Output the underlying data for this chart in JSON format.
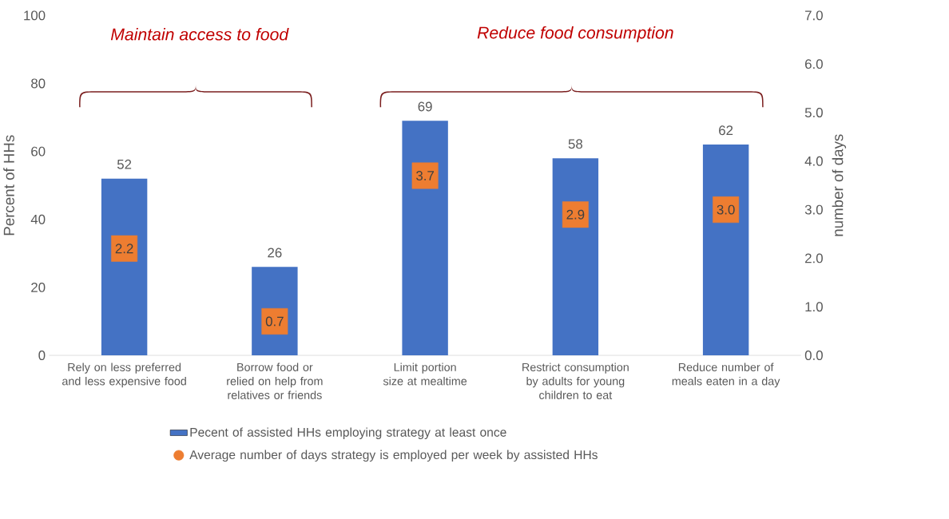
{
  "chart_data": {
    "type": "bar",
    "ylabel": "Percent of HHs",
    "y2label": "number of days",
    "categories": [
      "Rely on less preferred and less expensive food",
      "Borrow food or relied on help from relatives or friends",
      "Limit portion size at mealtime",
      "Restrict consumption by adults for young children to eat",
      "Reduce number of meals eaten in a day"
    ],
    "series": [
      {
        "name": "Pecent of assisted HHs employing strategy at least once",
        "color": "#4472c4",
        "values": [
          52,
          26,
          69,
          58,
          62
        ]
      },
      {
        "name": "Average number of days strategy is employed per week by assisted HHs",
        "type": "scatter",
        "axis": "y2",
        "marker": "square",
        "color": "#ed7d31",
        "values": [
          2.2,
          0.7,
          3.7,
          2.9,
          3.0
        ],
        "value_labels": [
          "2.2",
          "0.7",
          "3.7",
          "2.9",
          "3.0"
        ]
      }
    ],
    "ylim": [
      0,
      100
    ],
    "yticks": [
      0,
      20,
      40,
      60,
      80,
      100
    ],
    "y2lim": [
      0,
      7.0
    ],
    "y2ticks": [
      {
        "value": 0,
        "label": "0.0"
      },
      {
        "value": 1,
        "label": "1.0"
      },
      {
        "value": 2,
        "label": "2.0"
      },
      {
        "value": 3,
        "label": "3.0"
      },
      {
        "value": 4,
        "label": "4.0"
      },
      {
        "value": 5,
        "label": "5.0"
      },
      {
        "value": 6,
        "label": "6.0"
      },
      {
        "value": 7,
        "label": "7.0"
      }
    ],
    "data_labels": true,
    "grid": false,
    "legend": "bottom",
    "annotations": [
      "Maintain access to food",
      "Reduce food consumption"
    ]
  }
}
